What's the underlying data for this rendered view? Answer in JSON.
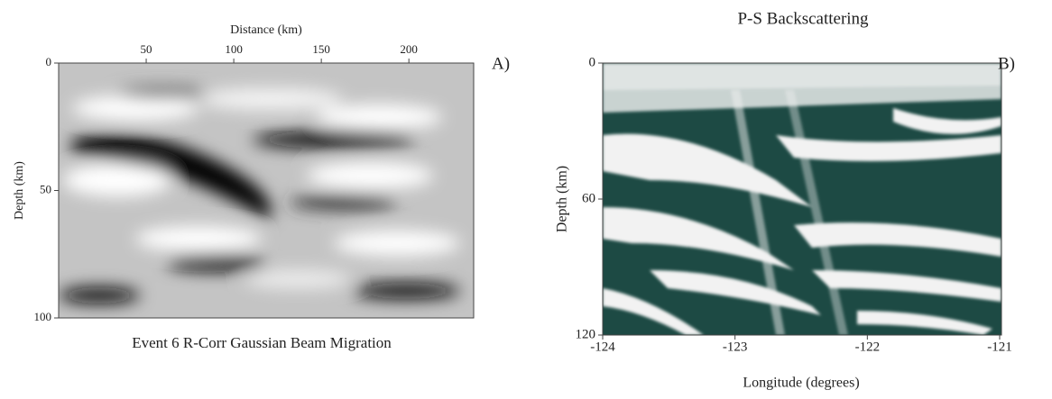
{
  "chart_data": [
    {
      "type": "image",
      "title": "Event 6 R-Corr Gaussian Beam Migration",
      "panel_label": "A)",
      "xlabel": "Distance (km)",
      "ylabel": "Depth (km)",
      "xlim": [
        0,
        237
      ],
      "xticks": [
        50,
        100,
        150,
        200
      ],
      "ylim": [
        0,
        100
      ],
      "yticks": [
        0,
        50,
        100
      ]
    },
    {
      "type": "image",
      "title": "P-S Backscattering",
      "panel_label": "B)",
      "xlabel": "Longitude (degrees)",
      "ylabel": "Depth (km)",
      "xlim": [
        -124,
        -121
      ],
      "xticks": [
        -124,
        -123,
        -122,
        -121
      ],
      "ylim": [
        0,
        120
      ],
      "yticks": [
        0,
        60,
        120
      ]
    }
  ]
}
